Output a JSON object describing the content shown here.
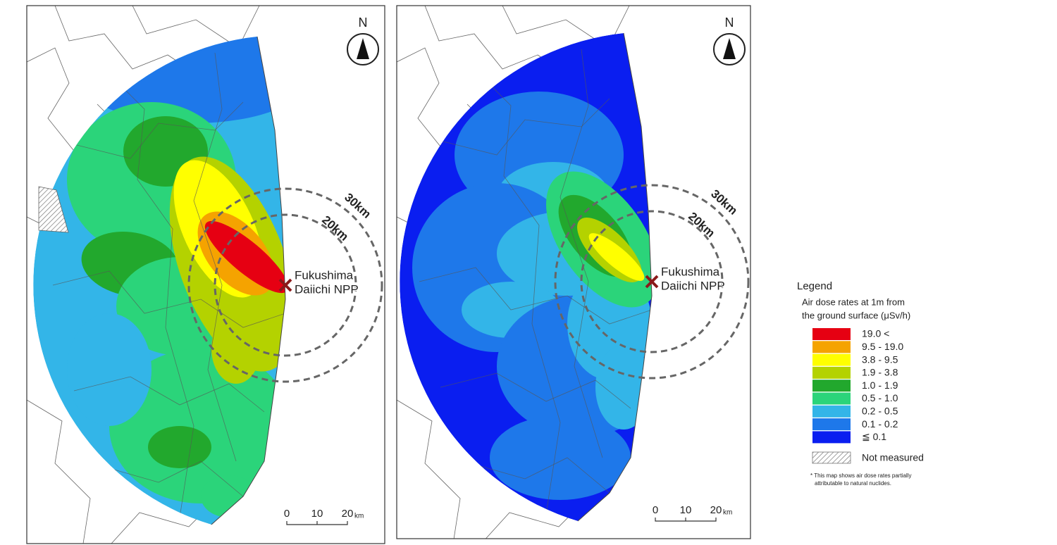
{
  "maps": [
    {
      "north": "N",
      "rings": [
        "30km",
        "20km"
      ],
      "site": [
        "Fukushima",
        "Daiichi NPP"
      ],
      "scale": {
        "ticks": [
          "0",
          "10",
          "20"
        ],
        "unit": "km"
      }
    },
    {
      "north": "N",
      "rings": [
        "30km",
        "20km"
      ],
      "site": [
        "Fukushima",
        "Daiichi NPP"
      ],
      "scale": {
        "ticks": [
          "0",
          "10",
          "20"
        ],
        "unit": "km"
      }
    }
  ],
  "legend": {
    "title": "Legend",
    "subtitle": [
      "Air dose rates at 1m from",
      "the ground surface (μSv/h)"
    ],
    "items": [
      {
        "label": "19.0 <",
        "color": "#e60012"
      },
      {
        "label": "9.5 - 19.0",
        "color": "#f5a300"
      },
      {
        "label": "3.8 - 9.5",
        "color": "#ffff00"
      },
      {
        "label": "1.9 - 3.8",
        "color": "#b4d200"
      },
      {
        "label": "1.0 - 1.9",
        "color": "#22a82d"
      },
      {
        "label": "0.5 - 1.0",
        "color": "#2bd47a"
      },
      {
        "label": "0.2 - 0.5",
        "color": "#33b5e8"
      },
      {
        "label": "0.1 - 0.2",
        "color": "#1e78ea"
      },
      {
        "label": "≦ 0.1",
        "color": "#0a1ef0"
      }
    ],
    "not_measured": "Not measured",
    "note": [
      "* This map shows air dose rates partially",
      "attributable to natural nuclides."
    ]
  }
}
